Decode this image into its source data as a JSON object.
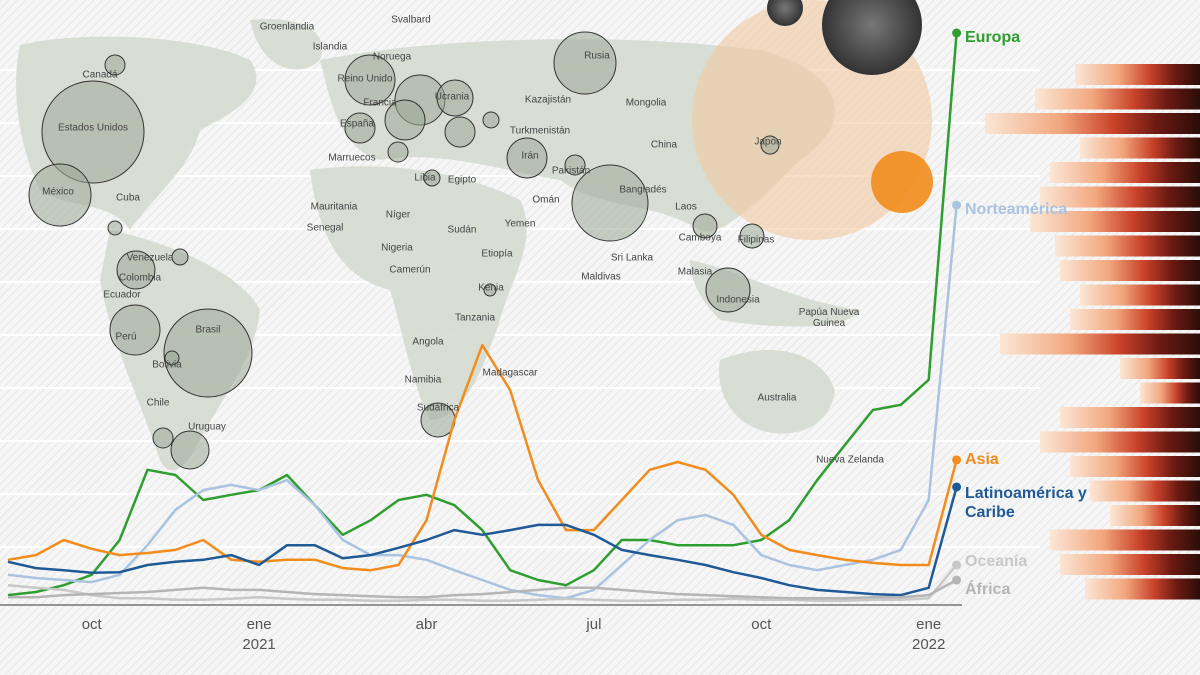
{
  "chart_data": {
    "type": "line",
    "categories": [
      null,
      null,
      null,
      "oct",
      null,
      null,
      null,
      null,
      null,
      "ene",
      null,
      null,
      null,
      null,
      null,
      "abr",
      null,
      null,
      null,
      null,
      null,
      "jul",
      null,
      null,
      null,
      null,
      null,
      "oct",
      null,
      null,
      null,
      null,
      null,
      "ene",
      null
    ],
    "year_labels": [
      "2021",
      "2022"
    ],
    "ylim": [
      0,
      110
    ],
    "series": [
      {
        "name": "Europa",
        "color": "#2f9e31",
        "values": [
          1.9,
          2.5,
          3.8,
          5.8,
          12.5,
          26,
          25,
          20.2,
          21.2,
          22.1,
          25,
          19.2,
          13.5,
          16.3,
          20.2,
          21.2,
          19.2,
          14.4,
          6.7,
          4.8,
          3.8,
          6.7,
          12.5,
          12.5,
          11.5,
          11.5,
          11.5,
          12.5,
          16.3,
          24,
          30.8,
          37.5,
          38.5,
          43.3,
          110
        ]
      },
      {
        "name": "Norteamérica",
        "color": "#a9c3e0",
        "values": [
          5.8,
          5.2,
          4.8,
          4.4,
          5.8,
          11.5,
          18.3,
          22.1,
          23.1,
          22.1,
          24,
          19.2,
          12.5,
          9.6,
          9.6,
          8.7,
          6.7,
          4.8,
          2.9,
          1.9,
          1.3,
          2.9,
          7.7,
          12.5,
          16.3,
          17.3,
          15.4,
          9.6,
          7.7,
          6.7,
          7.7,
          8.7,
          10.6,
          20.2,
          76.9
        ]
      },
      {
        "name": "Asia",
        "color": "#f28c1c",
        "values": [
          8.7,
          9.6,
          12.5,
          10.8,
          9.6,
          10,
          10.6,
          12.5,
          8.7,
          8.3,
          8.7,
          8.7,
          7.1,
          6.7,
          7.7,
          16.3,
          35.6,
          50,
          41.3,
          24,
          14.4,
          14.4,
          20.2,
          26,
          27.5,
          26,
          21.2,
          13.5,
          10.6,
          9.6,
          8.7,
          8.1,
          7.7,
          7.7,
          27.9
        ]
      },
      {
        "name": "Latinoamérica y Caribe",
        "color": "#1f5a96",
        "values": [
          8.3,
          7.1,
          6.7,
          6.2,
          6.3,
          7.7,
          8.3,
          8.7,
          9.6,
          7.7,
          11.5,
          11.5,
          9,
          9.6,
          11,
          12.5,
          14.4,
          13.5,
          14.4,
          15.4,
          15.4,
          13.5,
          10.6,
          9.6,
          8.7,
          7.7,
          6.3,
          5.2,
          3.8,
          2.9,
          2.5,
          2.1,
          1.9,
          3.3,
          22.7
        ]
      },
      {
        "name": "Oceanía",
        "color": "#c8c8c8",
        "values": [
          3.8,
          3.3,
          2.9,
          1.9,
          1.3,
          1.3,
          1,
          1,
          1.2,
          1.5,
          1.2,
          1,
          1,
          0.8,
          0.8,
          1,
          1,
          0.8,
          0.8,
          1,
          1.2,
          1,
          0.8,
          0.8,
          1,
          1,
          1.2,
          1,
          1,
          0.8,
          0.8,
          1,
          1,
          1.3,
          7.7
        ]
      },
      {
        "name": "África",
        "color": "#b5b5b5",
        "values": [
          1.5,
          1.5,
          1.9,
          2.1,
          2.3,
          2.5,
          2.9,
          3.3,
          2.9,
          2.9,
          2.5,
          2.1,
          1.9,
          1.7,
          1.5,
          1.5,
          1.9,
          2.1,
          2.5,
          2.9,
          3.3,
          3.3,
          2.9,
          2.5,
          2.1,
          1.9,
          1.7,
          1.5,
          1.3,
          1.3,
          1.3,
          1.5,
          1.5,
          1.9,
          4.8
        ]
      }
    ],
    "map_labels": [
      "Groenlandia",
      "Svalbard",
      "Islandia",
      "Canadá",
      "Noruega",
      "Reino Unido",
      "Rusia",
      "Kazajistán",
      "Mongolia",
      "Estados Unidos",
      "España",
      "Francia",
      "Ucrania",
      "Turkmenistán",
      "China",
      "Japón",
      "Marruecos",
      "Irán",
      "México",
      "Libia",
      "Egipto",
      "Pakistán",
      "Bangladés",
      "Cuba",
      "Omán",
      "Mauritania",
      "Níger",
      "Laos",
      "Senegal",
      "Sudán",
      "Yemen",
      "Camboya",
      "Filipinas",
      "Venezuela",
      "Nigeria",
      "Etiopía",
      "Sri Lanka",
      "Colombia",
      "Camerún",
      "Maldivas",
      "Malasia",
      "Ecuador",
      "Kenia",
      "Indonesia",
      "Perú",
      "Brasil",
      "Tanzania",
      "Papúa Nueva Guinea",
      "Angola",
      "Bolivia",
      "Madagascar",
      "Namibia",
      "Australia",
      "Chile",
      "Sudáfrica",
      "Uruguay",
      "Nueva Zelanda"
    ]
  }
}
